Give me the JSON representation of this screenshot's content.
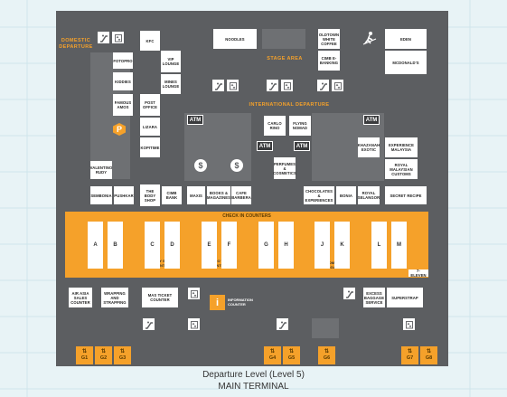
{
  "caption": {
    "line1": "Departure Level (Level 5)",
    "line2": "MAIN TERMINAL"
  },
  "zones": {
    "domestic": "DOMESTIC\nDEPARTURE",
    "stage": "STAGE AREA",
    "international": "INTERNATIONAL DEPARTURE",
    "checkin": "CHECK IN COUNTERS"
  },
  "shops": {
    "kfc": "KFC",
    "noodles": "NOODLES",
    "oldtown": "OLDTOWN WHITE COFFEE",
    "cimb": "CIMB E-BANKING",
    "eden": "EDEN",
    "mcdonalds": "MCDONALD'S",
    "fotopro": "FOTOPRO",
    "vip": "VIP LOUNGE",
    "mines": "MINES LOUNGE",
    "kiddies": "KIDDIES",
    "famous": "FAMOUS AMOS",
    "post": "POST OFFICE",
    "lizara": "LIZARA",
    "kopitime": "KOPITIME",
    "valentino": "VALENTINO RUDY",
    "sembonia": "SEMBONIA",
    "pushkar": "PUSHKAR",
    "bodyshop": "THE BODY SHOP",
    "cimb_bank": "CIMB BANK",
    "maxis": "MAXIS",
    "books": "BOOKS & MAGAZINES",
    "barbera": "CAFE BARBERA",
    "carlo": "CARLO RINO",
    "flying": "FLYING NOMAD",
    "perfumes": "PERFUMES & COSMETICS",
    "khazanah": "KHAZANAH EXOTIC",
    "experience": "EXPERIENCE MALAYSIA",
    "customs": "ROYAL MALAYSIAN CUSTOMS",
    "chocolates": "CHOCOLATES & EXPERIENCES",
    "bonia": "BONIA",
    "selangor": "ROYAL SELANGOR",
    "secret": "SECRET RECIPE",
    "airasia": "AIR ASIA SALES COUNTER",
    "wrapping": "WRAPPING AND STRAPPING",
    "mas": "MAS TICKET COUNTER",
    "excess": "EXCESS BAGGAGE SERVICE",
    "superstrap": "SUPERSTRAP"
  },
  "counters": [
    "A",
    "B",
    "C",
    "D",
    "E",
    "F",
    "G",
    "H",
    "J",
    "K",
    "L",
    "M"
  ],
  "counter_labels": {
    "firefly": "FIREFLY SALES COUNTER",
    "malindo": "MALINDO TICKET CENTRE",
    "unaccompanied": "UNACCOMPANIED BAGGAGE",
    "seven": "7-ELEVEN"
  },
  "atm_label": "ATM",
  "parking_label": "P",
  "info": {
    "icon": "i",
    "label": "INFORMATION COUNTER"
  },
  "gates": [
    "G1",
    "G2",
    "G3",
    "G4",
    "G5",
    "G6",
    "G7",
    "G8"
  ],
  "icons": {
    "escalator": "escalator-icon",
    "elevator": "elevator-icon",
    "travelator": "travelator-icon",
    "money": "money-changer-icon",
    "parking": "parking-icon",
    "info": "info-icon",
    "gate_arrows": "up-down-arrow-icon"
  },
  "colors": {
    "accent": "#f5a12a",
    "floor": "#5c5e61",
    "atm": "#3a3b3d",
    "background": "#e8f3f6"
  }
}
